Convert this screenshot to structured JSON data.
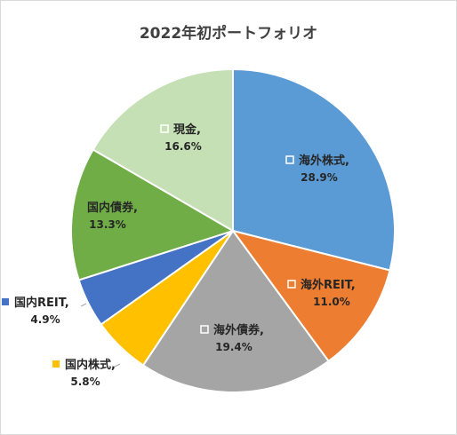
{
  "chart_data": {
    "type": "pie",
    "title": "2022年初ポートフォリオ",
    "slices": [
      {
        "label": "海外株式",
        "value": 28.9,
        "display": "28.9%",
        "color": "#5b9bd5",
        "label_color": "#262626",
        "marker": "square-outline",
        "marker_color": "#ffffff"
      },
      {
        "label": "海外REIT",
        "value": 11.0,
        "display": "11.0%",
        "color": "#ed7d31",
        "label_color": "#262626",
        "marker": "square-outline",
        "marker_color": "#ffffff"
      },
      {
        "label": "海外債券",
        "value": 19.4,
        "display": "19.4%",
        "color": "#a5a5a5",
        "label_color": "#262626",
        "marker": "square-outline",
        "marker_color": "#ffffff"
      },
      {
        "label": "国内株式",
        "value": 5.8,
        "display": "5.8%",
        "color": "#ffc000",
        "label_color": "#262626",
        "marker": "square-fill",
        "marker_color": "#ffc000"
      },
      {
        "label": "国内REIT",
        "value": 4.9,
        "display": "4.9%",
        "color": "#4472c4",
        "label_color": "#262626",
        "marker": "square-fill",
        "marker_color": "#4472c4"
      },
      {
        "label": "国内債券",
        "value": 13.3,
        "display": "13.3%",
        "color": "#70ad47",
        "label_color": "#262626",
        "marker": "square-fill",
        "marker_color": "#70ad47"
      },
      {
        "label": "現金",
        "value": 16.6,
        "display": "16.6%",
        "color": "#c5e0b4",
        "label_color": "#262626",
        "marker": "square-outline",
        "marker_color": "#ffffff"
      }
    ],
    "label_separator": ",",
    "start_angle": "12 o'clock",
    "direction": "clockwise",
    "legend": "none"
  }
}
